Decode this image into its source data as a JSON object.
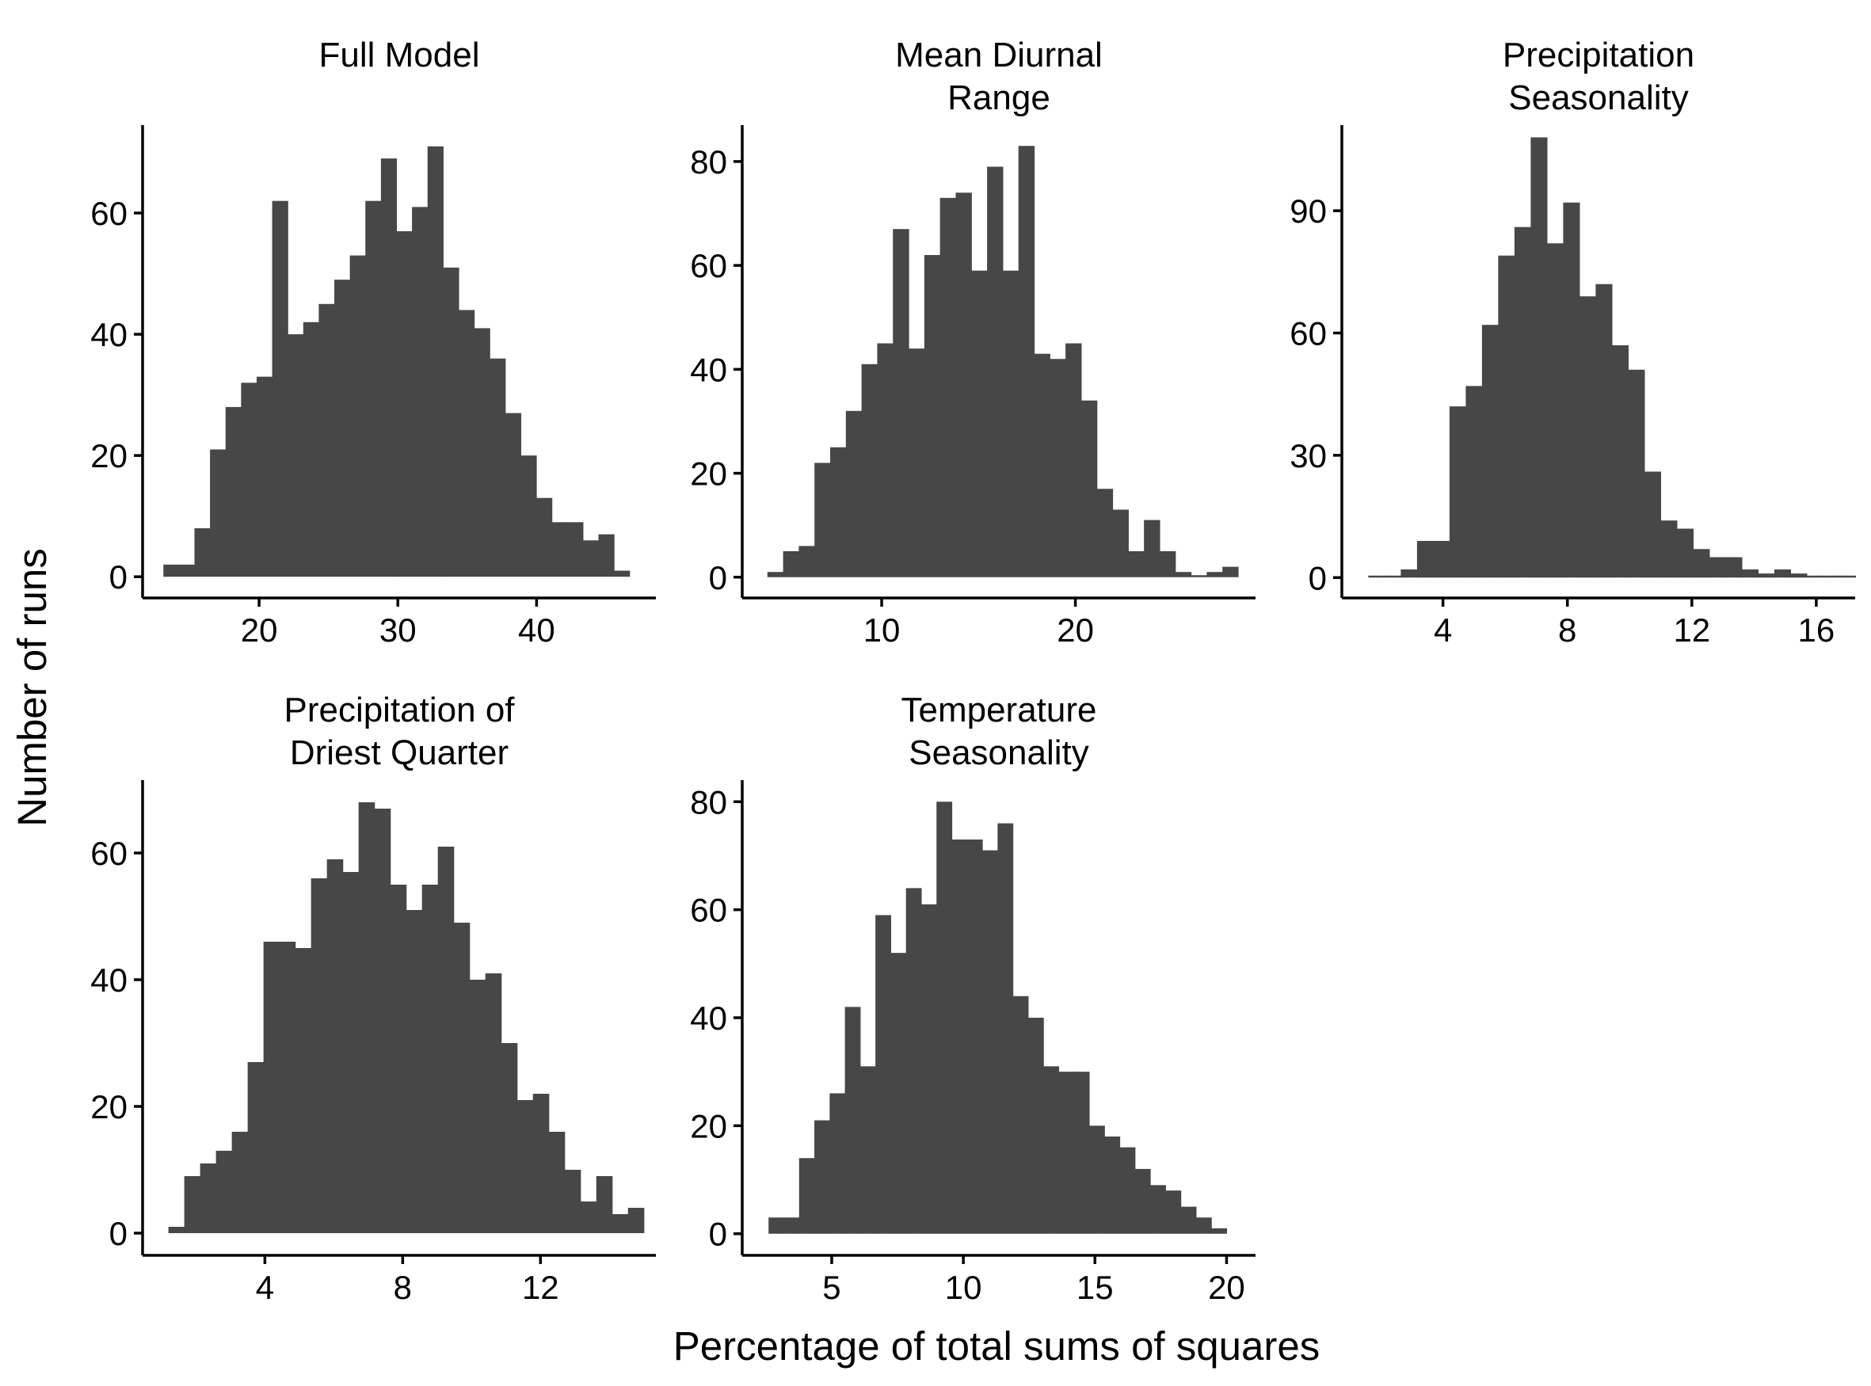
{
  "figure": {
    "ylabel": "Number of runs",
    "xlabel": "Percentage of total sums of squares"
  },
  "chart_data": [
    {
      "type": "bar",
      "title": [
        "Full Model"
      ],
      "xlim": [
        11.6,
        48.6
      ],
      "ylim": [
        -3.5,
        74.5
      ],
      "xticks": [
        20,
        30,
        40
      ],
      "yticks": [
        0,
        20,
        40,
        60
      ],
      "bin_start": 13.1,
      "bin_width": 1.12,
      "values": [
        2,
        2,
        8,
        21,
        28,
        32,
        33,
        62,
        40,
        42,
        45,
        49,
        53,
        62,
        69,
        57,
        61,
        71,
        51,
        44,
        41,
        36,
        27,
        20,
        13,
        9,
        9,
        6,
        7,
        1
      ]
    },
    {
      "type": "bar",
      "title": [
        "Mean Diurnal",
        "Range"
      ],
      "xlim": [
        2.8,
        29.3
      ],
      "ylim": [
        -4,
        87
      ],
      "xticks": [
        10,
        20
      ],
      "yticks": [
        0,
        20,
        40,
        60,
        80
      ],
      "bin_start": 4.1,
      "bin_width": 0.81,
      "values": [
        1,
        5,
        6,
        22,
        25,
        32,
        41,
        45,
        67,
        44,
        62,
        73,
        74,
        59,
        79,
        59,
        83,
        43,
        42,
        45,
        34,
        17,
        13,
        5,
        11,
        5,
        1,
        0,
        1,
        2
      ]
    },
    {
      "type": "bar",
      "title": [
        "Precipitation",
        "Seasonality"
      ],
      "xlim": [
        0.75,
        17.25
      ],
      "ylim": [
        -5,
        111
      ],
      "xticks": [
        4,
        8,
        12,
        16
      ],
      "yticks": [
        0,
        30,
        60,
        90
      ],
      "bin_start": 1.6,
      "bin_width": 0.522,
      "values": [
        0,
        0,
        2,
        9,
        9,
        42,
        47,
        62,
        79,
        86,
        108,
        82,
        92,
        69,
        72,
        57,
        51,
        26,
        14,
        12,
        7,
        5,
        5,
        2,
        1,
        2,
        1,
        0,
        0,
        0
      ]
    },
    {
      "type": "bar",
      "title": [
        "Precipitation of",
        "Driest Quarter"
      ],
      "xlim": [
        0.45,
        15.35
      ],
      "ylim": [
        -3.5,
        71.5
      ],
      "xticks": [
        4,
        8,
        12
      ],
      "yticks": [
        0,
        20,
        40,
        60
      ],
      "bin_start": 1.2,
      "bin_width": 0.46,
      "values": [
        1,
        9,
        11,
        13,
        16,
        27,
        46,
        46,
        45,
        56,
        59,
        57,
        68,
        67,
        55,
        51,
        55,
        61,
        49,
        40,
        41,
        30,
        21,
        22,
        16,
        10,
        5,
        9,
        3,
        4
      ]
    },
    {
      "type": "bar",
      "title": [
        "Temperature",
        "Seasonality"
      ],
      "xlim": [
        1.6,
        21.1
      ],
      "ylim": [
        -4,
        84
      ],
      "xticks": [
        5,
        10,
        15,
        20
      ],
      "yticks": [
        0,
        20,
        40,
        60,
        80
      ],
      "bin_start": 2.6,
      "bin_width": 0.58,
      "values": [
        3,
        3,
        14,
        21,
        26,
        42,
        31,
        59,
        52,
        64,
        61,
        80,
        73,
        73,
        71,
        76,
        44,
        40,
        31,
        30,
        30,
        20,
        18,
        16,
        12,
        9,
        8,
        5,
        3,
        1
      ]
    }
  ]
}
